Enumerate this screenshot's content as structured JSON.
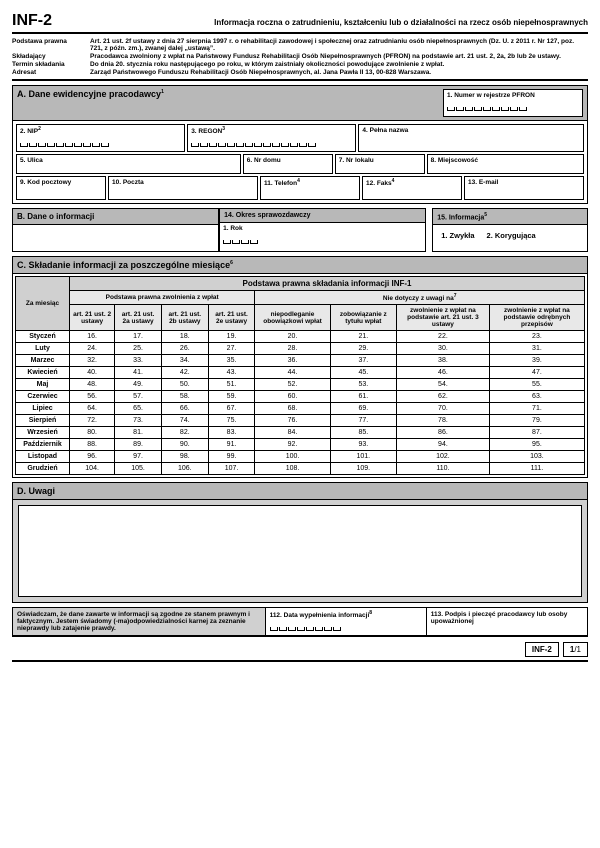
{
  "header": {
    "code": "INF-2",
    "title": "Informacja roczna o zatrudnieniu, kształceniu lub o działalności na rzecz osób niepełnosprawnych"
  },
  "legal": {
    "rows": [
      {
        "label": "Podstawa prawna",
        "text": "Art. 21 ust. 2f ustawy z dnia 27 sierpnia 1997 r. o rehabilitacji zawodowej i społecznej oraz zatrudnianiu osób niepełnosprawnych (Dz. U. z 2011 r. Nr 127, poz. 721, z późn. zm.), zwanej dalej „ustawą”."
      },
      {
        "label": "Składający",
        "text": "Pracodawca zwolniony z wpłat na Państwowy Fundusz Rehabilitacji Osób Niepełnosprawnych (PFRON) na podstawie art. 21 ust. 2, 2a, 2b lub 2e ustawy."
      },
      {
        "label": "Termin składania",
        "text": "Do dnia 20. stycznia roku następującego po roku, w którym zaistniały okoliczności powodujące zwolnienie z wpłat."
      },
      {
        "label": "Adresat",
        "text": "Zarząd Państwowego Funduszu Rehabilitacji Osób Niepełnosprawnych, al. Jana Pawła II 13, 00-828 Warszawa."
      }
    ]
  },
  "sectionA": {
    "title": "A. Dane ewidencyjne pracodawcy",
    "pfron": "1. Numer w rejestrze PFRON",
    "nip": "2. NIP",
    "regon": "3. REGON",
    "nazwa": "4. Pełna nazwa",
    "ulica": "5. Ulica",
    "nrdomu": "6. Nr domu",
    "nrlokalu": "7. Nr lokalu",
    "miejscowosc": "8. Miejscowość",
    "kod": "9. Kod pocztowy",
    "poczta": "10. Poczta",
    "telefon": "11. Telefon",
    "faks": "12. Faks",
    "email": "13. E-mail"
  },
  "sectionB": {
    "title": "B. Dane o informacji",
    "okres": "14. Okres sprawozdawczy",
    "rok": "1. Rok",
    "informacja": "15. Informacja",
    "opt1": "1. Zwykła",
    "opt2": "2. Korygująca"
  },
  "sectionC": {
    "title": "C. Składanie informacji za poszczególne miesiące",
    "grand_header": "Podstawa prawna składania informacji INF-1",
    "left_group": "Podstawa prawna zwolnienia z wpłat",
    "right_group": "Nie dotyczy z uwagi na",
    "za_miesiac": "Za miesiąc",
    "cols_left": [
      "art. 21 ust. 2 ustawy",
      "art. 21 ust. 2a ustawy",
      "art. 21 ust. 2b ustawy",
      "art. 21 ust. 2e ustawy"
    ],
    "cols_right": [
      "niepodleganie obowiązkowi wpłat",
      "zobowiązanie z tytułu wpłat",
      "zwolnienie z wpłat na podstawie art. 21 ust. 3 ustawy",
      "zwolnienie z wpłat na podstawie odrębnych przepisów"
    ],
    "months": [
      "Styczeń",
      "Luty",
      "Marzec",
      "Kwiecień",
      "Maj",
      "Czerwiec",
      "Lipiec",
      "Sierpień",
      "Wrzesień",
      "Październik",
      "Listopad",
      "Grudzień"
    ],
    "start": 16
  },
  "sectionD": {
    "title": "D. Uwagi"
  },
  "bottom": {
    "decl": "Oświadczam, że dane zawarte w informacji są zgodne ze stanem prawnym i faktycznym. Jestem świadomy (-ma)odpowiedzialności karnej za zeznanie nieprawdy lub zatajenie prawdy.",
    "date": "112. Data wypełnienia informacji",
    "sign": "113. Podpis i pieczęć pracodawcy lub osoby upoważnionej"
  },
  "footer": {
    "code": "INF-2",
    "page": "1/1"
  }
}
